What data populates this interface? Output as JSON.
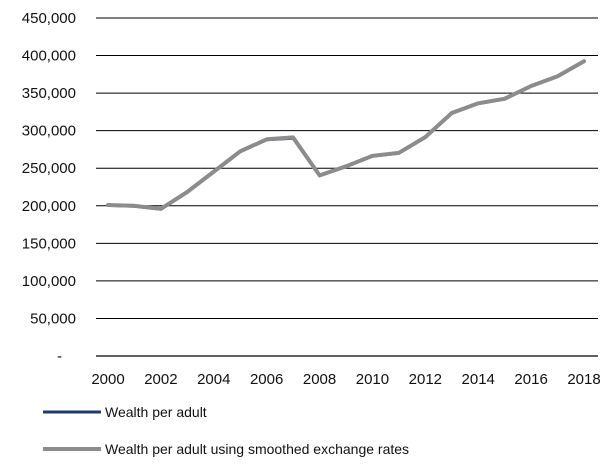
{
  "chart_data": {
    "type": "line",
    "x": [
      2000,
      2001,
      2002,
      2003,
      2004,
      2005,
      2006,
      2007,
      2008,
      2009,
      2010,
      2011,
      2012,
      2013,
      2014,
      2015,
      2016,
      2017,
      2018
    ],
    "x_ticks": [
      "2000",
      "2002",
      "2004",
      "2006",
      "2008",
      "2010",
      "2012",
      "2014",
      "2016",
      "2018"
    ],
    "y_ticks": [
      "-",
      "50,000",
      "100,000",
      "150,000",
      "200,000",
      "250,000",
      "300,000",
      "350,000",
      "400,000",
      "450,000"
    ],
    "ylim": [
      0,
      450000
    ],
    "xlim": [
      2000,
      2018
    ],
    "grid": "horizontal",
    "legend_position": "bottom-left",
    "series": [
      {
        "name": "Wealth per adult",
        "color": "#1f3a73",
        "values": [
          200500,
          199500,
          195500,
          218000,
          245000,
          272000,
          288000,
          290000,
          240000,
          252000,
          266000,
          270000,
          291000,
          323000,
          336000,
          342000,
          359000,
          372000,
          392000
        ]
      },
      {
        "name": "Wealth per adult using smoothed exchange rates",
        "color": "#8c8c8c",
        "values": [
          201000,
          200000,
          196000,
          218500,
          245500,
          272500,
          288500,
          291000,
          240500,
          252500,
          266500,
          270500,
          291500,
          323500,
          336500,
          342500,
          359500,
          372500,
          392500
        ]
      }
    ]
  }
}
